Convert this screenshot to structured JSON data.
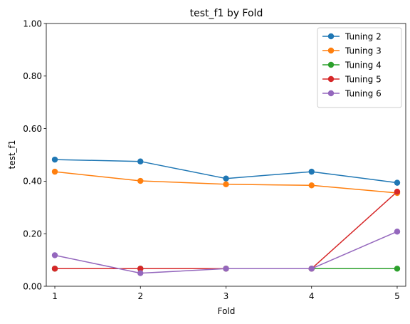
{
  "chart_data": {
    "type": "line",
    "title": "test_f1 by Fold",
    "xlabel": "Fold",
    "ylabel": "test_f1",
    "x": [
      1,
      2,
      3,
      4,
      5
    ],
    "x_ticks": [
      "1",
      "2",
      "3",
      "4",
      "5"
    ],
    "xlim": [
      0.9,
      5.1
    ],
    "ylim": [
      0,
      1
    ],
    "y_ticks": [
      "0.00",
      "0.20",
      "0.40",
      "0.60",
      "0.80",
      "1.00"
    ],
    "grid": false,
    "legend_position": "top-right",
    "series": [
      {
        "name": "Tuning 2",
        "color": "#1f77b4",
        "values": [
          0.482,
          0.475,
          0.41,
          0.436,
          0.394
        ]
      },
      {
        "name": "Tuning 3",
        "color": "#ff7f0e",
        "values": [
          0.436,
          0.401,
          0.388,
          0.384,
          0.355
        ]
      },
      {
        "name": "Tuning 4",
        "color": "#2ca02c",
        "values": [
          0.067,
          0.067,
          0.067,
          0.067,
          0.067
        ]
      },
      {
        "name": "Tuning 5",
        "color": "#d62728",
        "values": [
          0.067,
          0.067,
          0.067,
          0.067,
          0.36
        ]
      },
      {
        "name": "Tuning 6",
        "color": "#9467bd",
        "values": [
          0.118,
          0.05,
          0.067,
          0.067,
          0.208
        ]
      }
    ]
  }
}
